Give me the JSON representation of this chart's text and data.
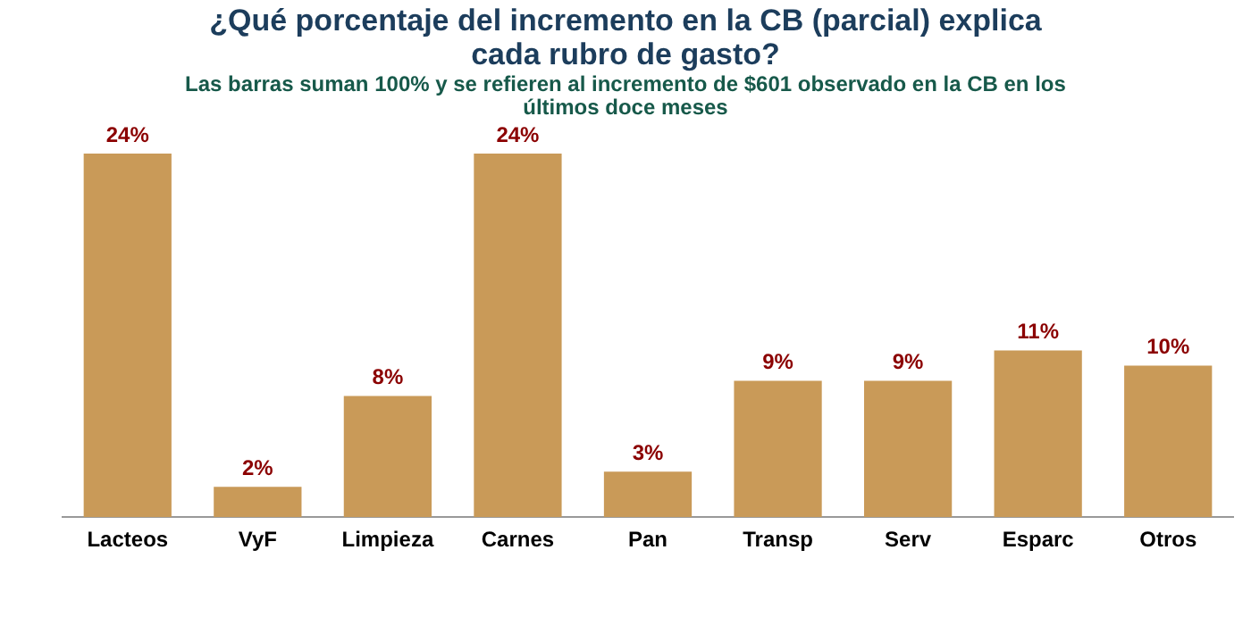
{
  "chart_data": {
    "type": "bar",
    "title": "¿Qué porcentaje del incremento en la CB (parcial) explica cada rubro de gasto?",
    "subtitle": "Las barras suman 100% y se refieren al incremento de $601 observado en la CB en los últimos doce meses",
    "categories": [
      "Lacteos",
      "VyF",
      "Limpieza",
      "Carnes",
      "Pan",
      "Transp",
      "Serv",
      "Esparc",
      "Otros"
    ],
    "values": [
      24,
      2,
      8,
      24,
      3,
      9,
      9,
      11,
      10
    ],
    "value_labels": [
      "24%",
      "2%",
      "8%",
      "24%",
      "3%",
      "9%",
      "9%",
      "11%",
      "10%"
    ],
    "color": "#c99a58",
    "legend": false
  }
}
